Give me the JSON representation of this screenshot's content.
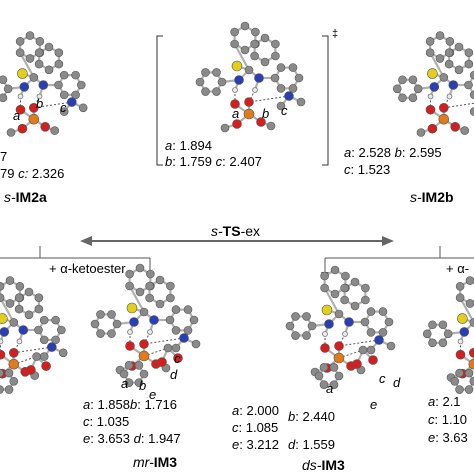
{
  "structures": {
    "s_im2a": {
      "prefix": "s-",
      "name": "IM2a",
      "values": [
        "7",
        "79",
        "2.326"
      ],
      "value_keys": [
        "c:"
      ]
    },
    "s_ts_ex": {
      "prefix": "s-",
      "name": "TS",
      "suffix": "-ex",
      "a": "1.894",
      "b": "1.759",
      "c": "2.407",
      "double_dagger": "‡"
    },
    "s_im2b": {
      "prefix": "s-",
      "name": "IM2b",
      "a": "2.528",
      "b": "2.595",
      "c": "1.523",
      "tail": "+ α-"
    },
    "mr_im3": {
      "prefix": "mr-",
      "name": "IM3",
      "a": "1.858",
      "b": "1.716",
      "c": "1.035",
      "d": "1.947",
      "e": "3.653"
    },
    "ds_im3": {
      "prefix": "ds-",
      "name": "IM3",
      "a": "2.000",
      "b": "2.440",
      "c": "1.085",
      "d": "1.559",
      "e": "3.212"
    },
    "right_partial": {
      "a": "2.1",
      "c": "1.10",
      "e": "3.63"
    }
  },
  "arrows": {
    "ketoester_label": "+ α-ketoester"
  },
  "bond_labels": [
    "a",
    "b",
    "c",
    "d",
    "e"
  ],
  "colors": {
    "carbon": "#8a8a8a",
    "nitrogen": "#2b3fb5",
    "oxygen": "#d21f1f",
    "sulfur": "#e3cf1a",
    "phosphorus": "#e07a1a",
    "hydrogen": "#e8e8e8",
    "bond": "#b0b0b0",
    "arrow": "#6a6a6a"
  }
}
